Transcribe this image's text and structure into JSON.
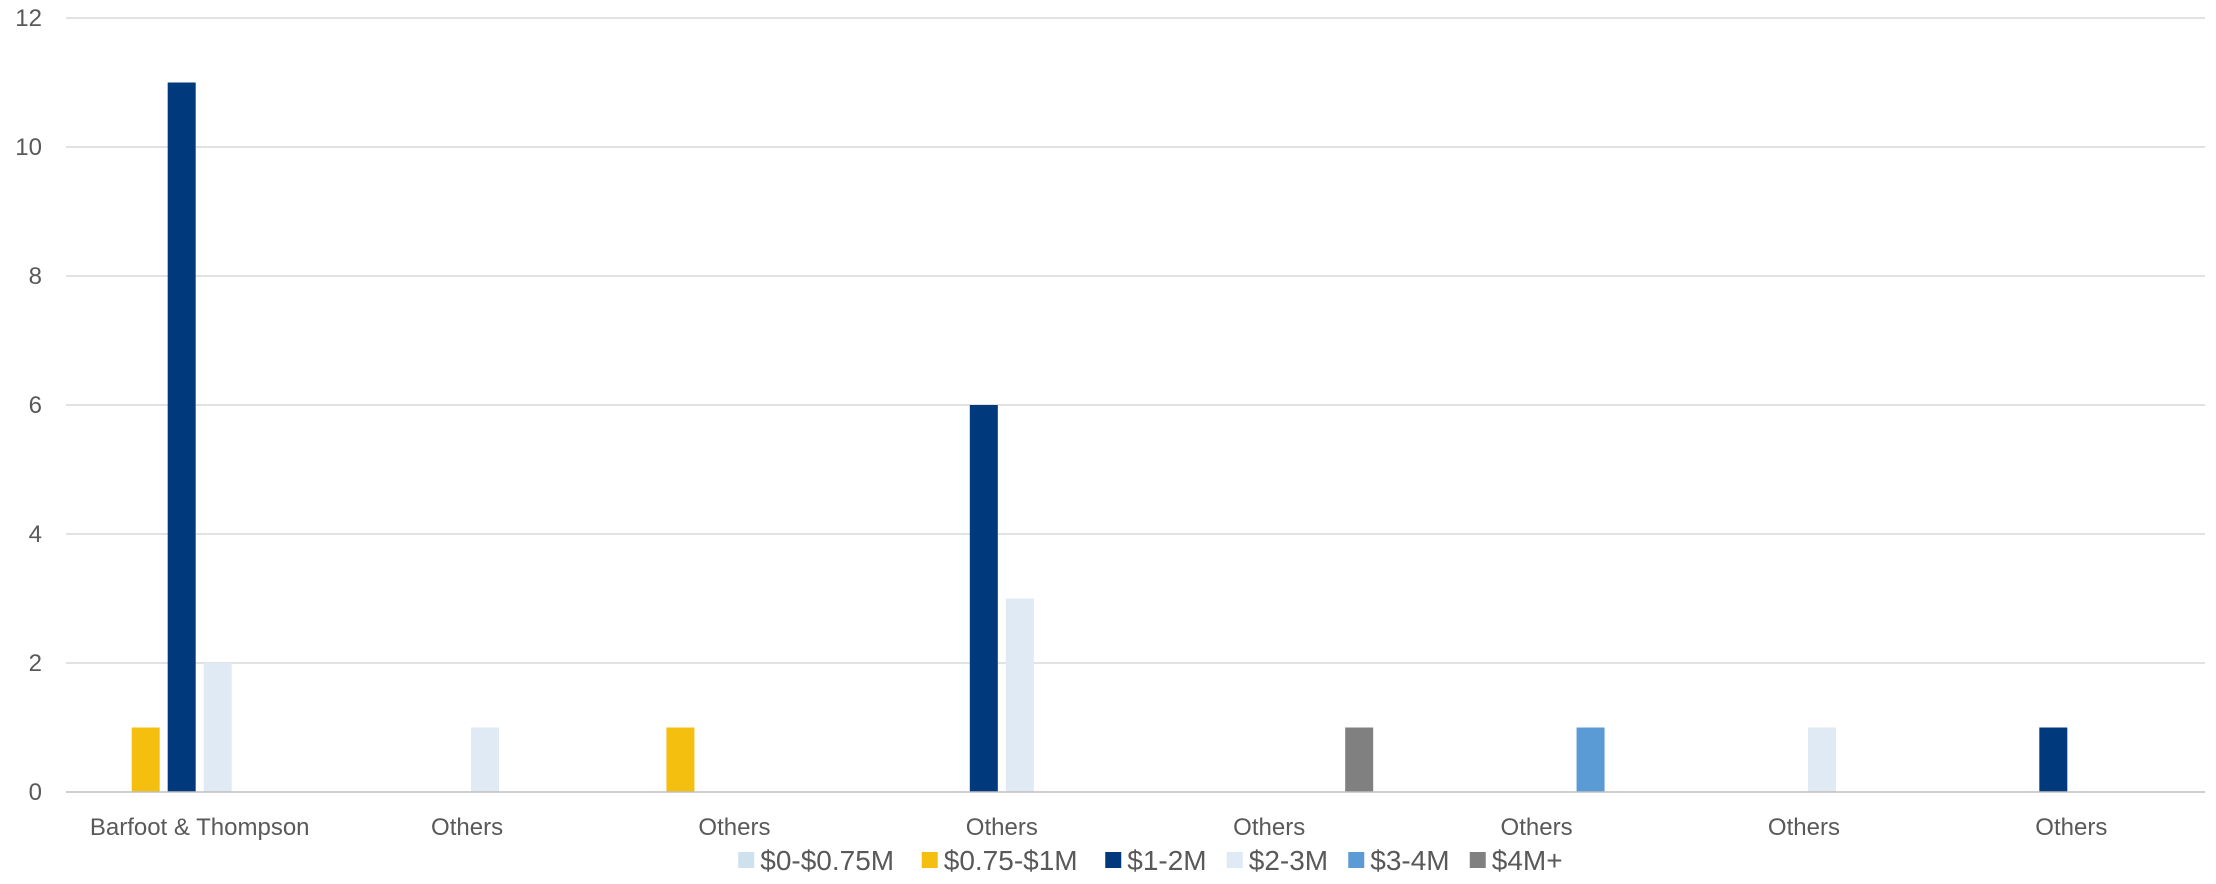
{
  "chart_data": {
    "type": "bar",
    "title": "",
    "xlabel": "",
    "ylabel": "",
    "categories": [
      "Barfoot & Thompson",
      "Others",
      "Others",
      "Others",
      "Others",
      "Others",
      "Others",
      "Others"
    ],
    "ylim": [
      0,
      12
    ],
    "yticks": [
      0,
      2,
      4,
      6,
      8,
      10,
      12
    ],
    "grid": true,
    "legend_position": "bottom",
    "series": [
      {
        "name": "$0-$0.75M",
        "color": "#cfe0ef",
        "values": [
          0,
          0,
          0,
          0,
          0,
          0,
          0,
          0
        ]
      },
      {
        "name": "$0.75-$1M",
        "color": "#f5bf0f",
        "values": [
          1,
          0,
          1,
          0,
          0,
          0,
          0,
          0
        ]
      },
      {
        "name": "$1-2M",
        "color": "#003a7c",
        "values": [
          11,
          0,
          0,
          6,
          0,
          0,
          0,
          1
        ]
      },
      {
        "name": "$2-3M",
        "color": "#dfeaf4",
        "values": [
          2,
          1,
          0,
          3,
          0,
          0,
          1,
          0
        ]
      },
      {
        "name": "$3-4M",
        "color": "#5b9bd5",
        "values": [
          0,
          0,
          0,
          0,
          0,
          1,
          0,
          0
        ]
      },
      {
        "name": "$4M+",
        "color": "#808080",
        "values": [
          0,
          0,
          0,
          0,
          1,
          0,
          0,
          0
        ]
      }
    ]
  }
}
